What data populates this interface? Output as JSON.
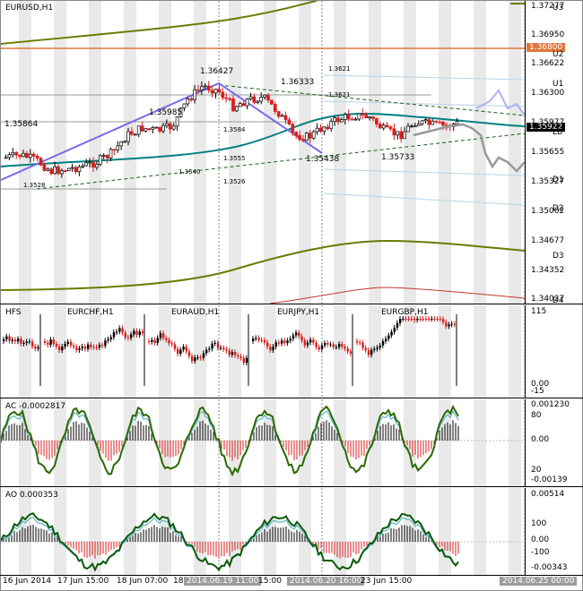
{
  "main": {
    "title": "EURUSD,H1",
    "price_labels": [
      "1.37277",
      "1.36950",
      "1.36622",
      "1.36300",
      "1.35977",
      "1.35655",
      "1.35327",
      "1.35002",
      "1.34677",
      "1.34352",
      "1.34027"
    ],
    "level_tags": [
      "U3",
      "U2",
      "U1",
      "LB",
      "D1",
      "D2",
      "D3",
      "D4"
    ],
    "orange_tag": "1.36800",
    "current_tag": "1.35922",
    "annotations": [
      "1.36427",
      "1.36333",
      "1.35985",
      "1.35864",
      "1.3621",
      "1.3621",
      "1.3584",
      "1.3555",
      "1.35438",
      "1.35733",
      "1.3540",
      "1.3528",
      "1.3526"
    ]
  },
  "hfs": {
    "title": "HFS",
    "subs": [
      "EURCHF,H1",
      "EURAUD,H1",
      "EURJPY,H1",
      "EURGBP,H1"
    ],
    "scale": [
      "115",
      "0.00",
      "-15"
    ]
  },
  "ac": {
    "title": "AC -0.0002817",
    "scale": [
      "0.001230",
      "80",
      "0.00",
      "20",
      "-0.00139"
    ]
  },
  "ao": {
    "title": "AO 0.000353",
    "scale": [
      "0.00514",
      "100",
      "0.00",
      "-100",
      "-0.00343"
    ]
  },
  "xaxis": [
    "16 Jun 2014",
    "17 Jun 15:00",
    "18 Jun 07:00",
    "18",
    "2014.06.19 11:00",
    "15:00",
    "2014.06.20 16:00",
    "23 Jun 15:00",
    "2014.06.25 00:00"
  ],
  "colors": {
    "olive": "#6b7a00",
    "teal": "#008080",
    "orange": "#e0763a",
    "purple": "#7b68ee",
    "bull": "#000000",
    "bear": "#d81e1e",
    "shade": "#e9e9e9"
  }
}
